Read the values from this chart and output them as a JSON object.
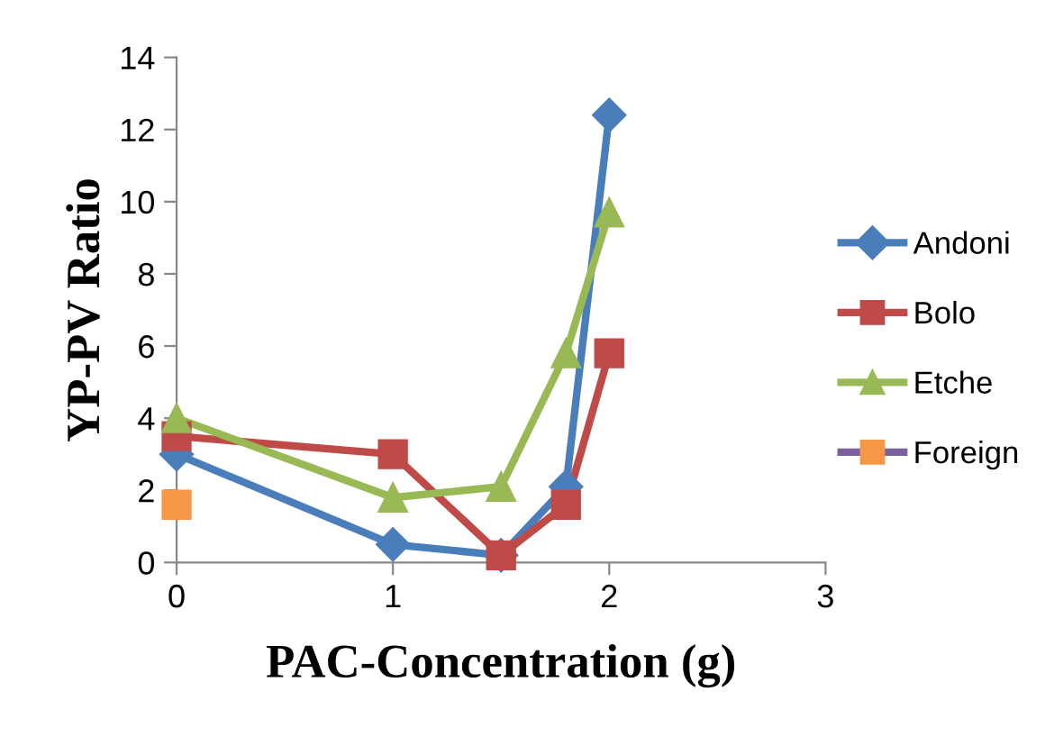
{
  "chart_data": {
    "type": "line",
    "xlabel": "PAC-Concentration (g)",
    "ylabel": "YP-PV Ratio",
    "xlim": [
      0,
      3
    ],
    "xticks": [
      0,
      1,
      2,
      3
    ],
    "ylim": [
      0,
      14
    ],
    "yticks": [
      0,
      2,
      4,
      6,
      8,
      10,
      12,
      14
    ],
    "grid": false,
    "legend": "right",
    "line_style": "solid",
    "series": [
      {
        "name": "Andoni",
        "color": "#4a7ebb",
        "marker": "diamond",
        "x": [
          0,
          1,
          1.5,
          1.8,
          2
        ],
        "values": [
          3.0,
          0.5,
          0.2,
          2.1,
          12.4
        ]
      },
      {
        "name": "Bolo",
        "color": "#be4b48",
        "marker": "square",
        "x": [
          0,
          1,
          1.5,
          1.8,
          2
        ],
        "values": [
          3.5,
          3.0,
          0.2,
          1.6,
          5.8
        ]
      },
      {
        "name": "Etche",
        "color": "#98b954",
        "marker": "triangle",
        "x": [
          0,
          1,
          1.5,
          1.8,
          2
        ],
        "values": [
          4.0,
          1.8,
          2.1,
          5.8,
          9.7
        ]
      },
      {
        "name": "Foreign",
        "color": "#7d5fa0",
        "marker": "square",
        "colors": [
          "#f79646"
        ],
        "x": [
          0
        ],
        "values": [
          1.6
        ]
      }
    ]
  }
}
